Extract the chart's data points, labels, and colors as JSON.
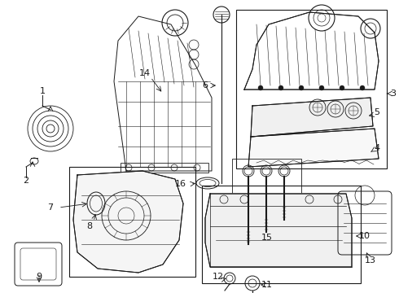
{
  "bg_color": "#ffffff",
  "line_color": "#1a1a1a",
  "fig_w": 4.9,
  "fig_h": 3.6,
  "dpi": 100,
  "font_size": 8.0,
  "lw": 0.7
}
